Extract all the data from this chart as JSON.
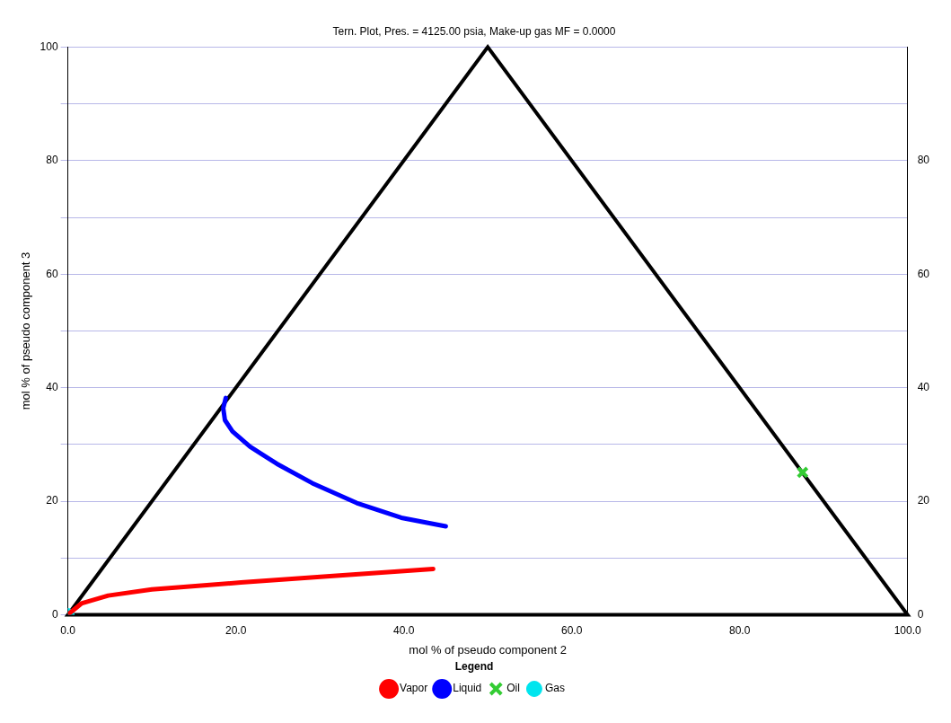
{
  "chart_data": {
    "type": "line",
    "title": "Tern. Plot, Pres. = 4125.00 psia, Make-up gas MF = 0.0000",
    "xlabel": "mol % of pseudo component 2",
    "ylabel": "mol % of pseudo component 3",
    "legend_title": "Legend",
    "legend": "bottom",
    "grid": "y",
    "xlim": [
      0,
      100
    ],
    "xticks": [
      {
        "value": 0,
        "label": "0.0"
      },
      {
        "value": 20,
        "label": "20.0"
      },
      {
        "value": 40,
        "label": "40.0"
      },
      {
        "value": 60,
        "label": "60.0"
      },
      {
        "value": 80,
        "label": "80.0"
      },
      {
        "value": 100,
        "label": "100.0"
      }
    ],
    "ylim": [
      0,
      100
    ],
    "yticks": [
      0,
      {
        "value": 10,
        "label": null
      },
      20,
      {
        "value": 30,
        "label": null
      },
      40,
      {
        "value": 50,
        "label": null
      },
      60,
      {
        "value": 70,
        "label": null
      },
      80,
      {
        "value": 90,
        "label": null
      },
      100
    ],
    "y2lim": [
      0,
      100
    ],
    "y2ticks": [
      0,
      20,
      40,
      60,
      80
    ],
    "series": [
      {
        "name": "Vapor",
        "color": "#ff0000",
        "marker": "none",
        "x": [
          0.2,
          1.6,
          4.8,
          10,
          20.6,
          31.2,
          43.5
        ],
        "values": [
          0.3,
          2.0,
          3.4,
          4.5,
          5.7,
          6.8,
          8.1
        ]
      },
      {
        "name": "Liquid",
        "color": "#0000ff",
        "marker": "none",
        "x": [
          18.8,
          18.5,
          18.7,
          19.6,
          21.7,
          24.9,
          29.1,
          34.4,
          39.7,
          45
        ],
        "values": [
          38.2,
          36.4,
          34.3,
          32.3,
          29.6,
          26.6,
          23.2,
          19.7,
          17.1,
          15.6
        ]
      },
      {
        "name": "Oil",
        "type": "scatter",
        "color": "#33cc33",
        "marker": "cross",
        "x": [
          87.5
        ],
        "values": [
          25.1
        ]
      },
      {
        "name": "Gas",
        "type": "scatter",
        "color": "#00e5ee",
        "marker": "circle",
        "x": [
          0
        ],
        "values": [
          0
        ]
      }
    ]
  }
}
